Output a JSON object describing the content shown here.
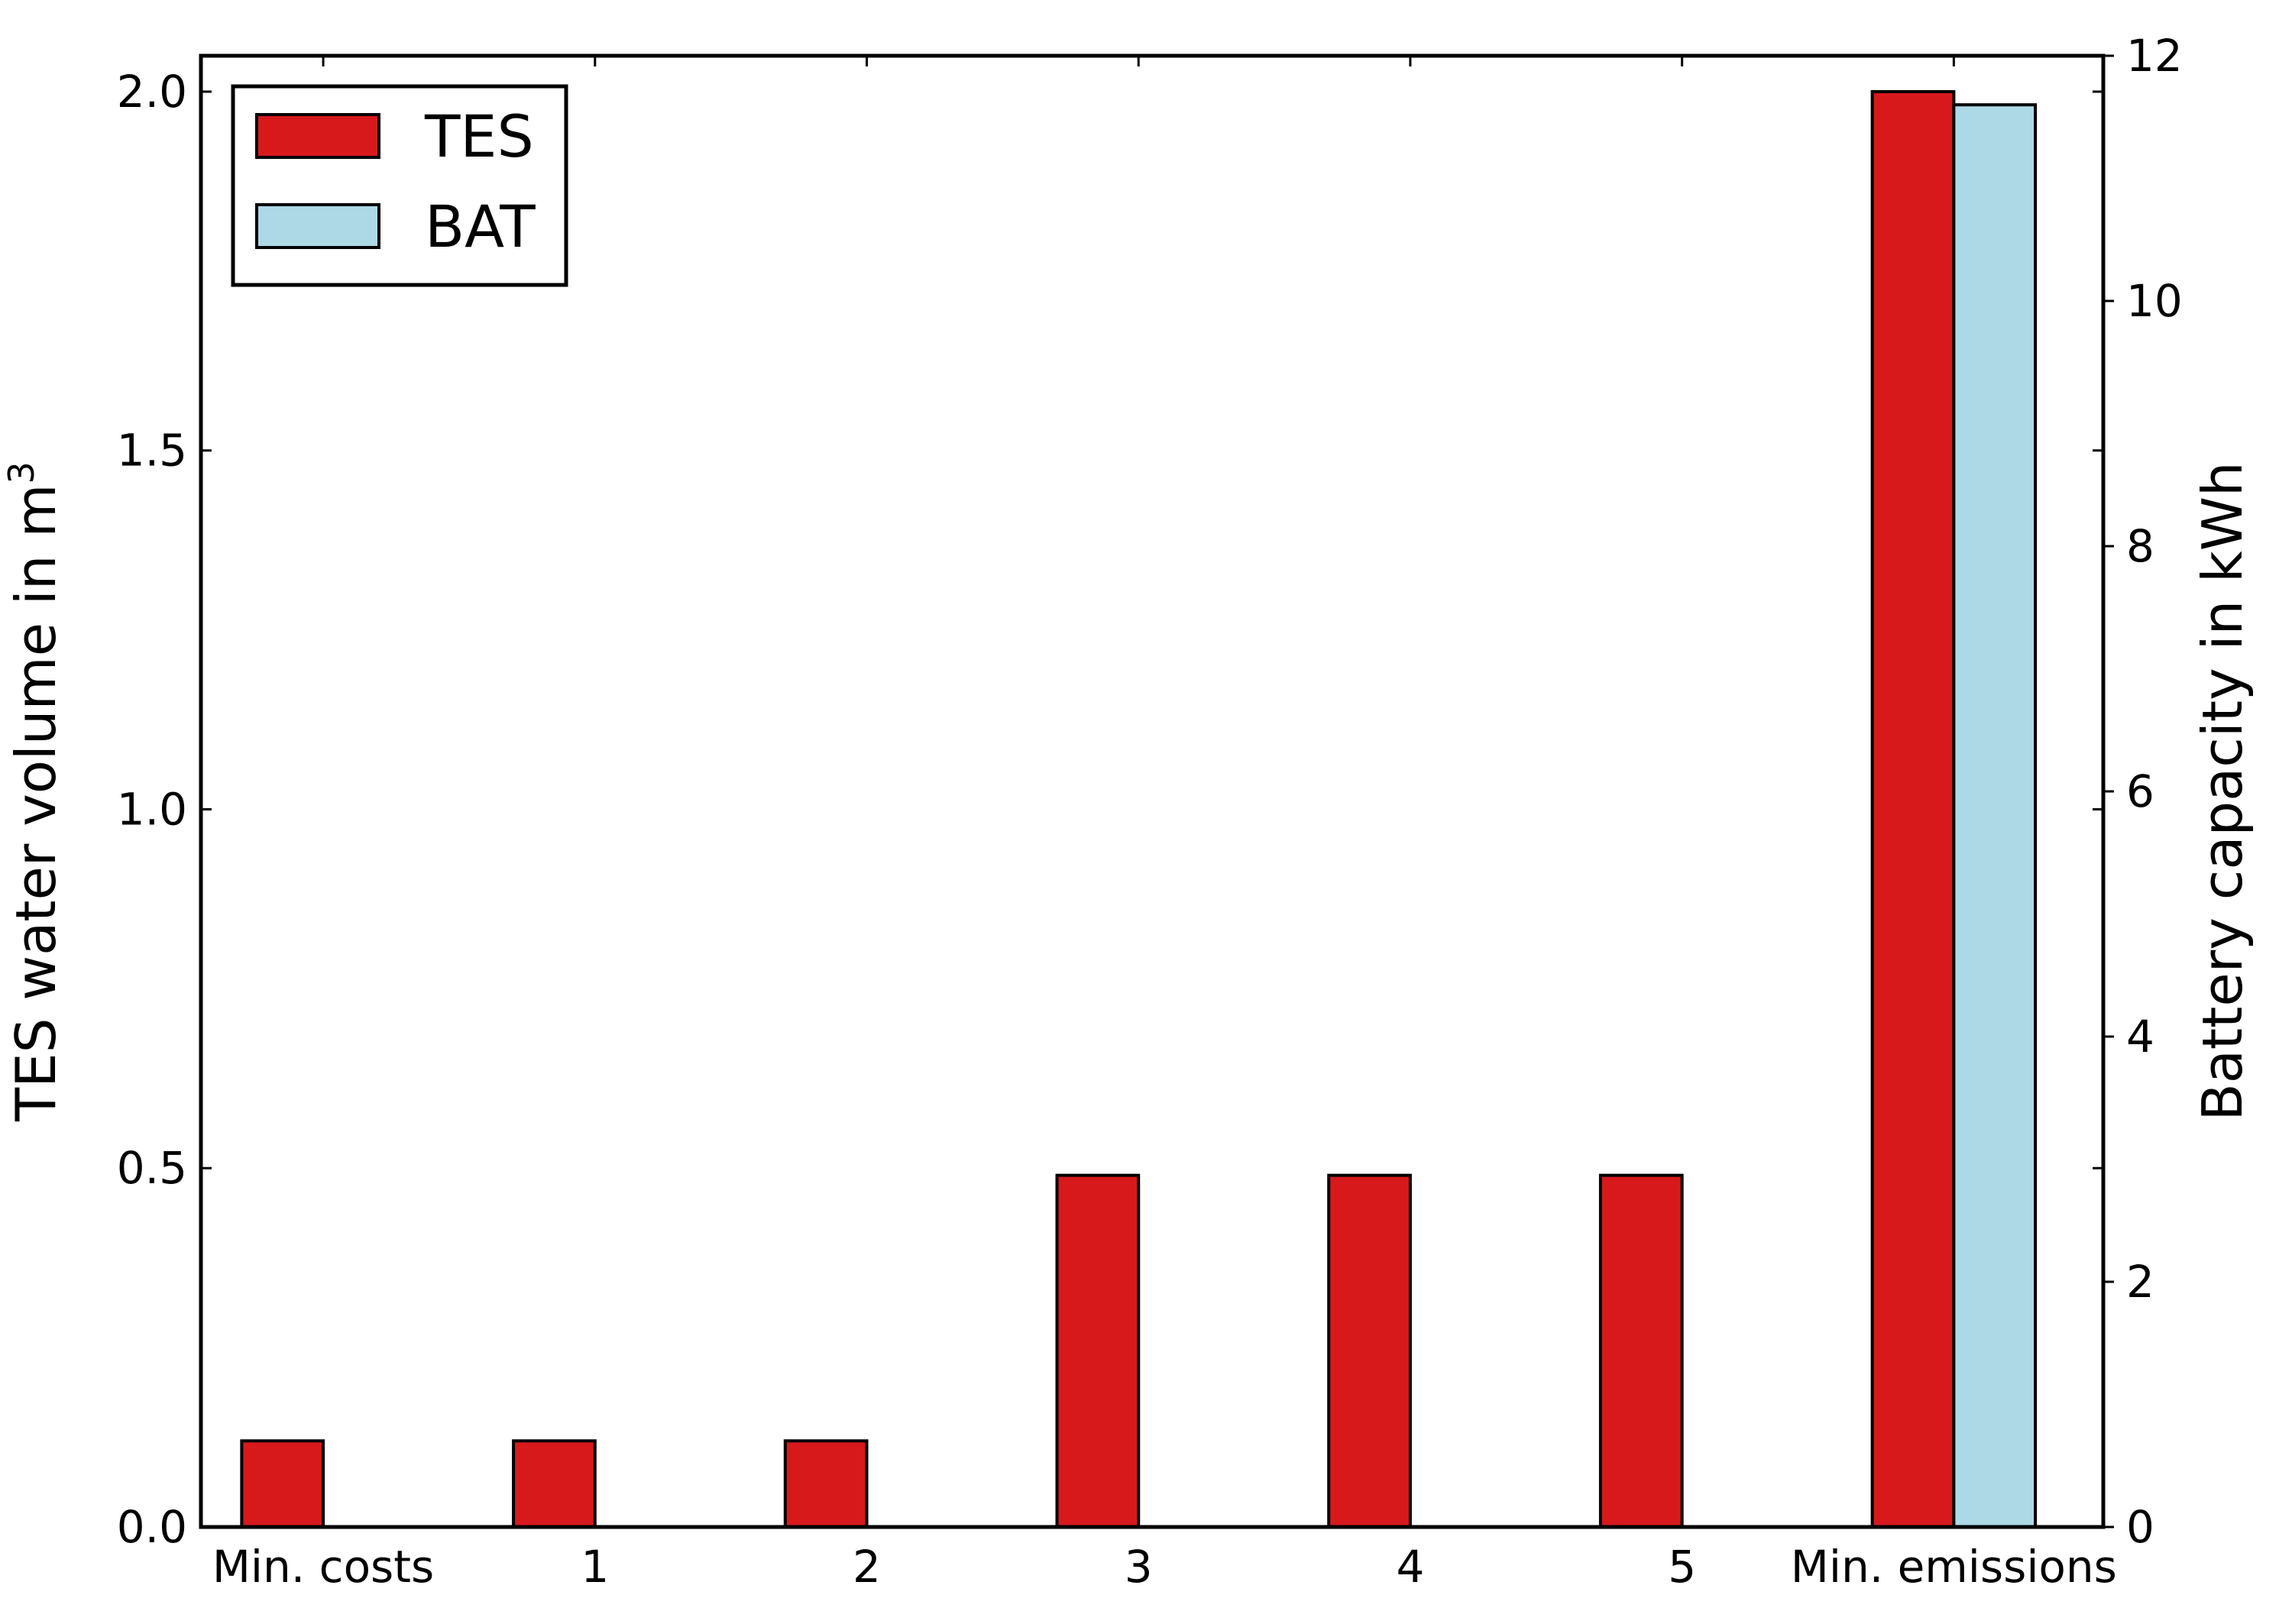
{
  "chart_data": {
    "type": "bar",
    "categories": [
      "Min. costs",
      "1",
      "2",
      "3",
      "4",
      "5",
      "Min. emissions"
    ],
    "series": [
      {
        "name": "TES",
        "axis": "left",
        "color": "#d7191c",
        "values": [
          0.12,
          0.12,
          0.12,
          0.49,
          0.49,
          0.49,
          2.0
        ]
      },
      {
        "name": "BAT",
        "axis": "right",
        "color": "#add8e6",
        "values": [
          0,
          0,
          0,
          0,
          0,
          0,
          11.6
        ]
      }
    ],
    "ylabel_left": "TES water volume in m",
    "ylabel_left_superscript": "3",
    "ylabel_right": "Battery capacity in kWh",
    "ylim_left": [
      0,
      2.05
    ],
    "ylim_right": [
      0,
      12
    ],
    "yticks_left": [
      "0.0",
      "0.5",
      "1.0",
      "1.5",
      "2.0"
    ],
    "yticks_right": [
      "0",
      "2",
      "4",
      "6",
      "8",
      "10",
      "12"
    ],
    "grid": false,
    "legend_position": "top-left"
  }
}
